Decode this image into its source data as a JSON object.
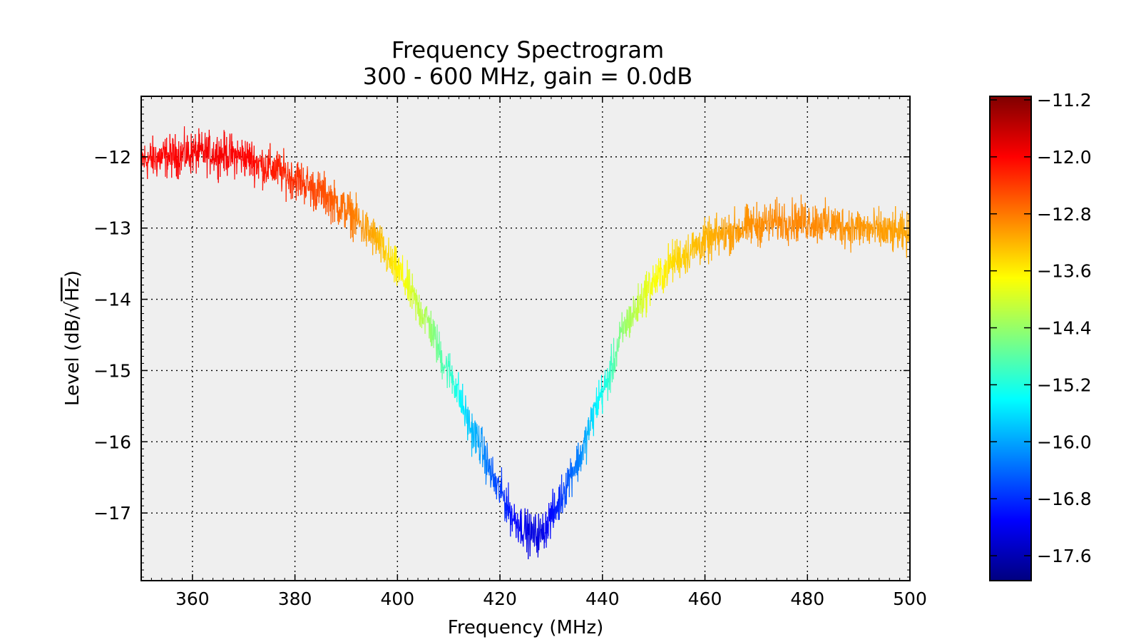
{
  "chart_data": {
    "type": "line",
    "title": "Frequency Spectrogram",
    "subtitle": "300 - 600 MHz, gain = 0.0dB",
    "xlabel": "Frequency (MHz)",
    "ylabel_prefix": "Level (dB/",
    "ylabel_unit": "Hz",
    "ylabel_suffix": ")",
    "xlim": [
      350,
      500
    ],
    "ylim": [
      -17.95,
      -11.15
    ],
    "grid": true,
    "background": "#efefef",
    "colormap": "jet",
    "x_ticks": [
      "360",
      "380",
      "400",
      "420",
      "440",
      "460",
      "480",
      "500"
    ],
    "y_ticks": [
      "−12",
      "−13",
      "−14",
      "−15",
      "−16",
      "−17"
    ],
    "colorbar": {
      "range": [
        -17.95,
        -11.15
      ],
      "ticks": [
        "−11.2",
        "−12.0",
        "−12.8",
        "−13.6",
        "−14.4",
        "−15.2",
        "−16.0",
        "−16.8",
        "−17.6"
      ]
    },
    "series": [
      {
        "x": [
          350,
          355,
          360,
          365,
          370,
          375,
          380,
          385,
          390,
          395,
          400,
          405,
          410,
          415,
          420,
          423,
          426,
          428,
          430,
          435,
          440,
          445,
          450,
          455,
          460,
          465,
          470,
          475,
          480,
          485,
          490,
          495,
          500
        ],
        "y": [
          -12.05,
          -12.0,
          -11.95,
          -11.95,
          -12.0,
          -12.15,
          -12.3,
          -12.5,
          -12.75,
          -13.1,
          -13.6,
          -14.2,
          -15.0,
          -15.9,
          -16.7,
          -17.1,
          -17.3,
          -17.3,
          -17.05,
          -16.3,
          -15.3,
          -14.3,
          -13.75,
          -13.4,
          -13.2,
          -13.05,
          -12.95,
          -12.9,
          -12.9,
          -12.95,
          -13.0,
          -13.05,
          -13.1
        ],
        "noise_amplitude": 0.35
      }
    ]
  }
}
